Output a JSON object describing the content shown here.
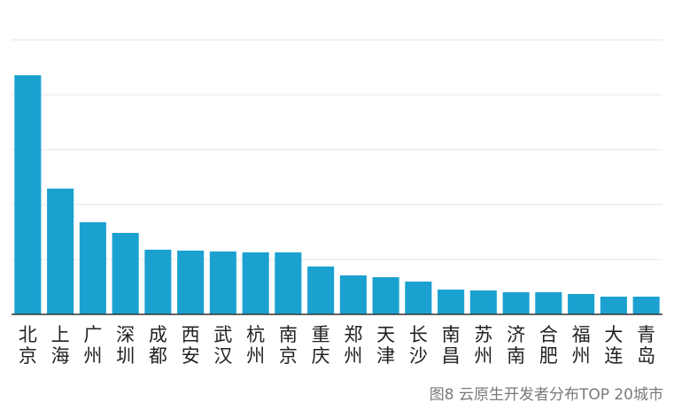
{
  "caption": "图8  云原生开发者分布TOP 20城市",
  "chart_data": {
    "type": "bar",
    "title": "",
    "xlabel": "",
    "ylabel": "",
    "grid": true,
    "legend": "none",
    "categories": [
      "北京",
      "上海",
      "广州",
      "深圳",
      "成都",
      "西安",
      "武汉",
      "杭州",
      "南京",
      "重庆",
      "郑州",
      "天津",
      "长沙",
      "南昌",
      "苏州",
      "济南",
      "合肥",
      "福州",
      "大连",
      "青岛"
    ],
    "values": [
      270,
      142,
      104,
      92,
      73,
      72,
      71,
      70,
      70,
      54,
      44,
      42,
      37,
      28,
      27,
      25,
      25,
      23,
      20,
      20
    ],
    "ylim": [
      0,
      310
    ],
    "bar_color": "#1ba1d0",
    "grid_color": "#e6e6e6",
    "axis_color": "#333333"
  }
}
